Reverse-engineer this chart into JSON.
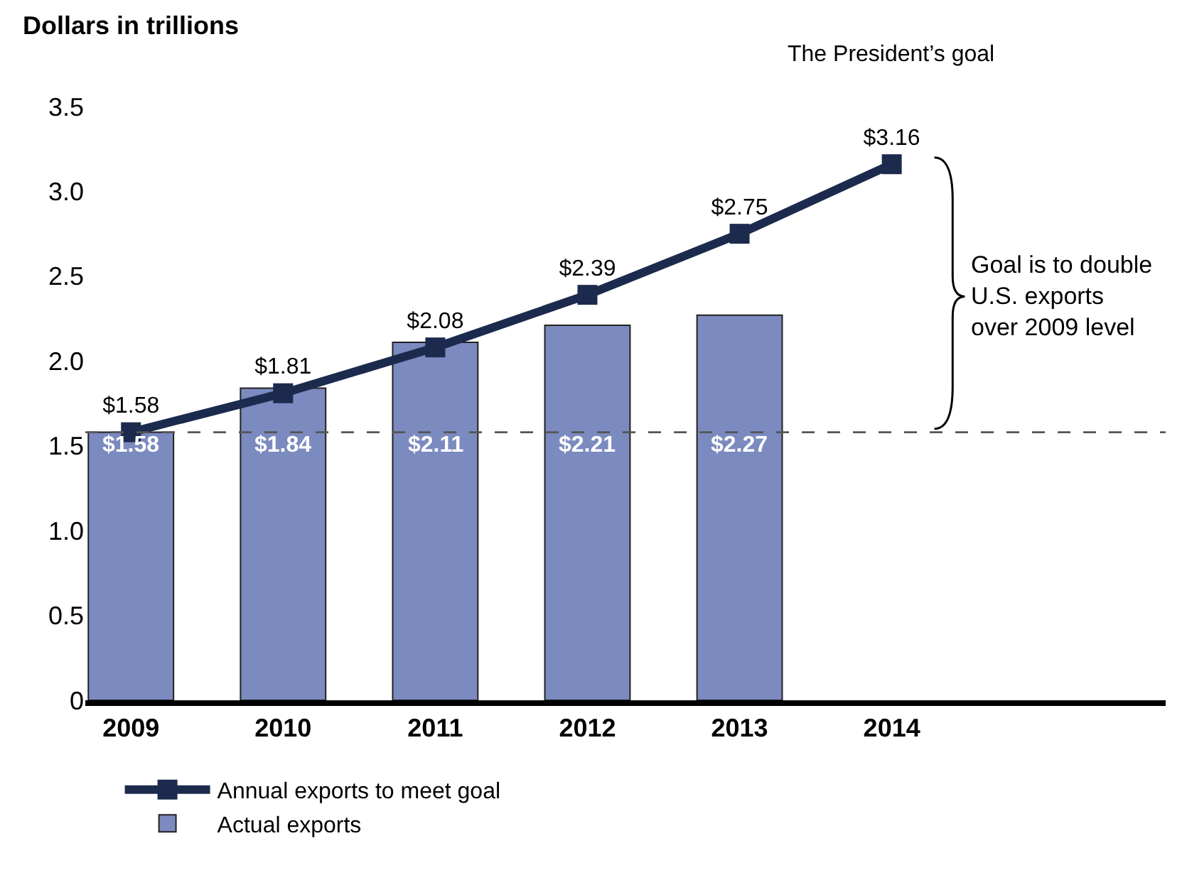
{
  "chart_data": {
    "type": "bar",
    "ylabel": "Dollars in trillions",
    "categories": [
      "2009",
      "2010",
      "2011",
      "2012",
      "2013",
      "2014"
    ],
    "series": [
      {
        "name": "Annual exports to meet goal",
        "type": "line",
        "color": "#1c2a4e",
        "marker": "square",
        "line_style": "solid",
        "values": [
          1.58,
          1.81,
          2.08,
          2.39,
          2.75,
          3.16
        ],
        "value_labels": [
          "$1.58",
          "$1.81",
          "$2.08",
          "$2.39",
          "$2.75",
          "$3.16"
        ]
      },
      {
        "name": "Actual exports",
        "color": "#7b8abf",
        "values": [
          1.58,
          1.84,
          2.11,
          2.21,
          2.27,
          null
        ],
        "value_labels": [
          "$1.58",
          "$1.84",
          "$2.11",
          "$2.21",
          "$2.27",
          null
        ]
      }
    ],
    "ylim": [
      0,
      3.5
    ],
    "yticks": [
      0,
      0.5,
      {
        "value": 1,
        "label": "1.0"
      },
      1.5,
      {
        "value": 2,
        "label": "2.0"
      },
      2.5,
      {
        "value": 3,
        "label": "3.0"
      },
      3.5
    ],
    "ref_lines": [
      {
        "axis": "y",
        "value": 1.58,
        "label": null,
        "color": "#555555",
        "line_style": "dashed"
      }
    ],
    "annotations": [
      "The President’s goal",
      "Goal is to double\nU.S. exports\nover 2009 level"
    ],
    "legend": "bottom left"
  }
}
